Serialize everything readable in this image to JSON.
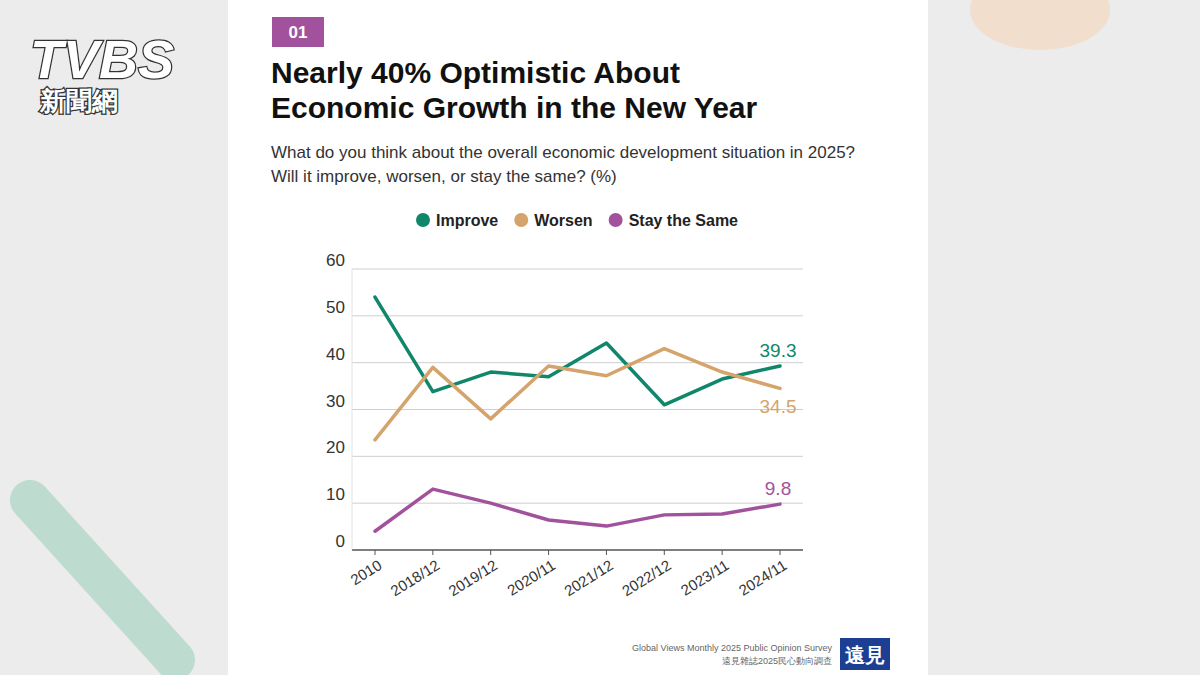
{
  "chart_data": {
    "type": "line",
    "badge": "01",
    "title": "Nearly 40% Optimistic About Economic Growth in the New Year",
    "subtitle": "What do you think about the overall economic development situation in 2025? Will it improve, worsen, or stay the same? (%)",
    "categories": [
      "2010",
      "2018/12",
      "2019/12",
      "2020/11",
      "2021/12",
      "2022/12",
      "2023/11",
      "2024/11"
    ],
    "series": [
      {
        "name": "Improve",
        "color": "#10876a",
        "values": [
          54,
          33.8,
          38,
          37,
          44.2,
          31,
          36.5,
          39.3
        ],
        "value_labels": [
          null,
          null,
          null,
          null,
          null,
          null,
          null,
          "39.3"
        ]
      },
      {
        "name": "Worsen",
        "color": "#d4a46c",
        "values": [
          23.5,
          39,
          28,
          39.3,
          37.2,
          43,
          38,
          34.5
        ],
        "value_labels": [
          null,
          null,
          null,
          null,
          null,
          null,
          null,
          "34.5"
        ]
      },
      {
        "name": "Stay the Same",
        "color": "#a2529c",
        "values": [
          4,
          13,
          10,
          6.4,
          5.1,
          7.5,
          7.7,
          9.8
        ],
        "value_labels": [
          null,
          null,
          null,
          null,
          null,
          null,
          null,
          "9.8"
        ]
      }
    ],
    "ylim": [
      0,
      60
    ],
    "yticks": [
      0,
      10,
      20,
      30,
      40,
      50,
      60
    ],
    "grid": true,
    "legend": "top",
    "data_labels": true,
    "source": "Global Views Monthly 2025 Public Opinion Survey",
    "source_zh": "遠見雜誌2025民心動向調查",
    "publisher": "遠見",
    "broadcaster": "TVBS",
    "broadcaster_sub": "新聞網"
  }
}
